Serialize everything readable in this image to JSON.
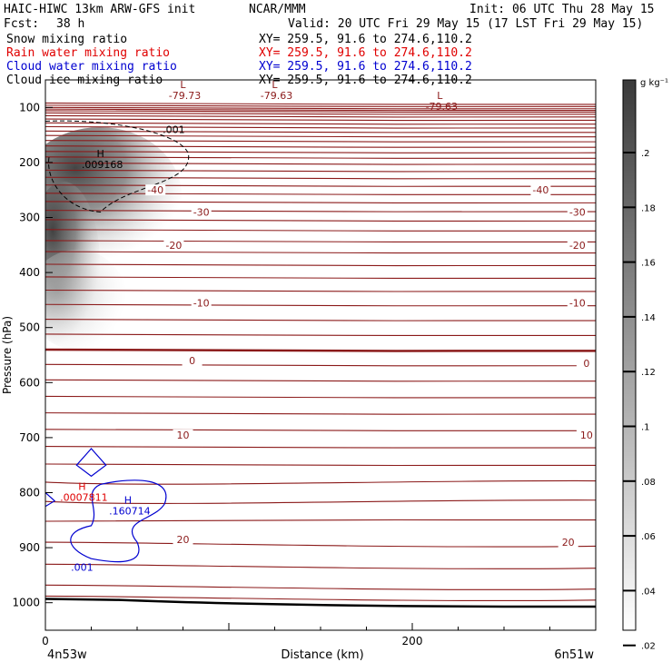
{
  "header": {
    "title_left": "HAIC-HIWC 13km ARW-GFS init",
    "center": "NCAR/MMM",
    "init": "Init: 06 UTC Thu 28 May 15",
    "fcst_label": "Fcst:",
    "fcst_value": "38 h",
    "valid": "Valid: 20 UTC Fri 29 May 15 (17 LST Fri 29 May 15)"
  },
  "fields": [
    {
      "name": "Snow mixing ratio",
      "xy": "XY= 259.5, 91.6 to 274.6,110.2",
      "color": "#000000"
    },
    {
      "name": "Rain water mixing ratio",
      "xy": "XY= 259.5, 91.6 to 274.6,110.2",
      "color": "#e00000"
    },
    {
      "name": "Cloud water mixing ratio",
      "xy": "XY= 259.5, 91.6 to 274.6,110.2",
      "color": "#0000d0"
    },
    {
      "name": "Cloud ice mixing ratio",
      "xy": "XY= 259.5, 91.6 to 274.6,110.2",
      "color": "#000000"
    }
  ],
  "colors": {
    "temperature": "#8b1a1a",
    "rain": "#e00000",
    "cloud_water": "#0000d0",
    "ice": "#000000"
  },
  "chart_data": {
    "type": "contour",
    "xlabel": "Distance (km)",
    "ylabel": "Pressure (hPa)",
    "x_range": [
      0,
      300
    ],
    "y_range": [
      1050,
      50
    ],
    "x_ticks": [
      0,
      200
    ],
    "y_ticks": [
      100,
      200,
      300,
      400,
      500,
      600,
      700,
      800,
      900,
      1000
    ],
    "x_left_label": "4n53w",
    "x_right_label": "6n51w",
    "colorbar": {
      "unit": "g kg⁻¹",
      "ticks": [
        ".2",
        ".18",
        ".16",
        ".14",
        ".12",
        ".1",
        ".08",
        ".06",
        ".04",
        ".02"
      ]
    },
    "max_labels": [
      {
        "kind": "L",
        "value": "-79.73",
        "x": 75,
        "p": 65
      },
      {
        "kind": "L",
        "value": "-79.63",
        "x": 125,
        "p": 65
      },
      {
        "kind": "L",
        "value": "-79.63",
        "x": 215,
        "p": 85
      },
      {
        "kind": "H",
        "value": ".009168",
        "x": 30,
        "p": 190,
        "color": "#000000"
      },
      {
        "kind": "H",
        "value": ".0007811",
        "x": 20,
        "p": 795,
        "color": "#e00000"
      },
      {
        "kind": "H",
        "value": ".160714",
        "x": 45,
        "p": 820,
        "color": "#0000d0"
      }
    ],
    "temperature_labels": [
      {
        "text": "-40",
        "x": 60,
        "p": 250
      },
      {
        "text": "-40",
        "x": 270,
        "p": 250
      },
      {
        "text": "-30",
        "x": 85,
        "p": 290
      },
      {
        "text": "-30",
        "x": 290,
        "p": 290
      },
      {
        "text": "-20",
        "x": 70,
        "p": 350
      },
      {
        "text": "-20",
        "x": 290,
        "p": 350
      },
      {
        "text": "-10",
        "x": 85,
        "p": 455
      },
      {
        "text": "-10",
        "x": 290,
        "p": 455
      },
      {
        "text": "0",
        "x": 80,
        "p": 560
      },
      {
        "text": "0",
        "x": 295,
        "p": 565
      },
      {
        "text": "10",
        "x": 75,
        "p": 695
      },
      {
        "text": "10",
        "x": 295,
        "p": 695
      },
      {
        "text": "20",
        "x": 75,
        "p": 885
      },
      {
        "text": "20",
        "x": 285,
        "p": 890
      }
    ],
    "contour_labels": [
      {
        "text": ".001",
        "x": 70,
        "p": 140,
        "color": "#000000"
      },
      {
        "text": ".001",
        "x": 20,
        "p": 935,
        "color": "#0000d0"
      }
    ]
  }
}
